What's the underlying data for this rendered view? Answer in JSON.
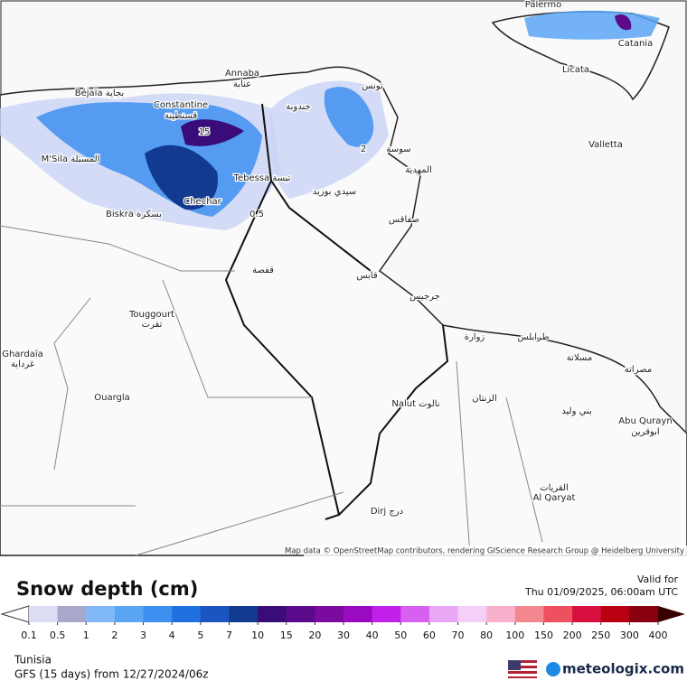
{
  "map": {
    "labels": [
      "Palermo",
      "Catania",
      "Licata",
      "Valletta",
      "Annaba",
      "عنابة",
      "Béjaïa بجاية",
      "Constantine",
      "قسنطينة",
      "M'Sila المسيلة",
      "Biskra بسكرة",
      "Tebessa تبسة",
      "Chechar",
      "Touggourt",
      "تقرت",
      "Ghardaïa",
      "غرداية",
      "Ouargla",
      "Nalut نالوت",
      "Dirj درج",
      "القريات",
      "Al Qaryat",
      "Abu Qurayn",
      "ابوقرين",
      "تونس",
      "جندوبة",
      "سوسة",
      "المهدية",
      "سيدي بوزيد",
      "صفاقس",
      "قفصة",
      "قابس",
      "جرجيس",
      "زوارة",
      "طرابلس",
      "مسلاتة",
      "مصراتة",
      "الزنتان",
      "بني وليد"
    ],
    "contour_labels": [
      "15",
      "2",
      "0.5"
    ],
    "attribution": "Map data © OpenStreetMap contributors, rendering GIScience Research Group @ Heidelberg University"
  },
  "legend": {
    "title": "Snow depth (cm)",
    "valid_label": "Valid for",
    "valid_time": "Thu 01/09/2025, 06:00am UTC",
    "ticks": [
      0.1,
      0.5,
      1,
      2,
      3,
      4,
      5,
      7,
      10,
      15,
      20,
      30,
      40,
      50,
      60,
      70,
      80,
      100,
      150,
      200,
      250,
      300,
      400
    ],
    "colors": [
      "#dcdcf5",
      "#a8a8cc",
      "#80b8f8",
      "#5ba5f5",
      "#3d8ff0",
      "#2070e0",
      "#1a55c0",
      "#123a90",
      "#3a0c7a",
      "#5a0a8a",
      "#7a0aa0",
      "#9a0ac0",
      "#c020e8",
      "#d860f0",
      "#e8a8f5",
      "#f4d0f8",
      "#f8b0cc",
      "#f48890",
      "#ee5060",
      "#d81040",
      "#b80010",
      "#880010"
    ]
  },
  "footer": {
    "region": "Tunisia",
    "model": "GFS (15 days) from 12/27/2024/06z",
    "brand": "meteologix.com"
  }
}
